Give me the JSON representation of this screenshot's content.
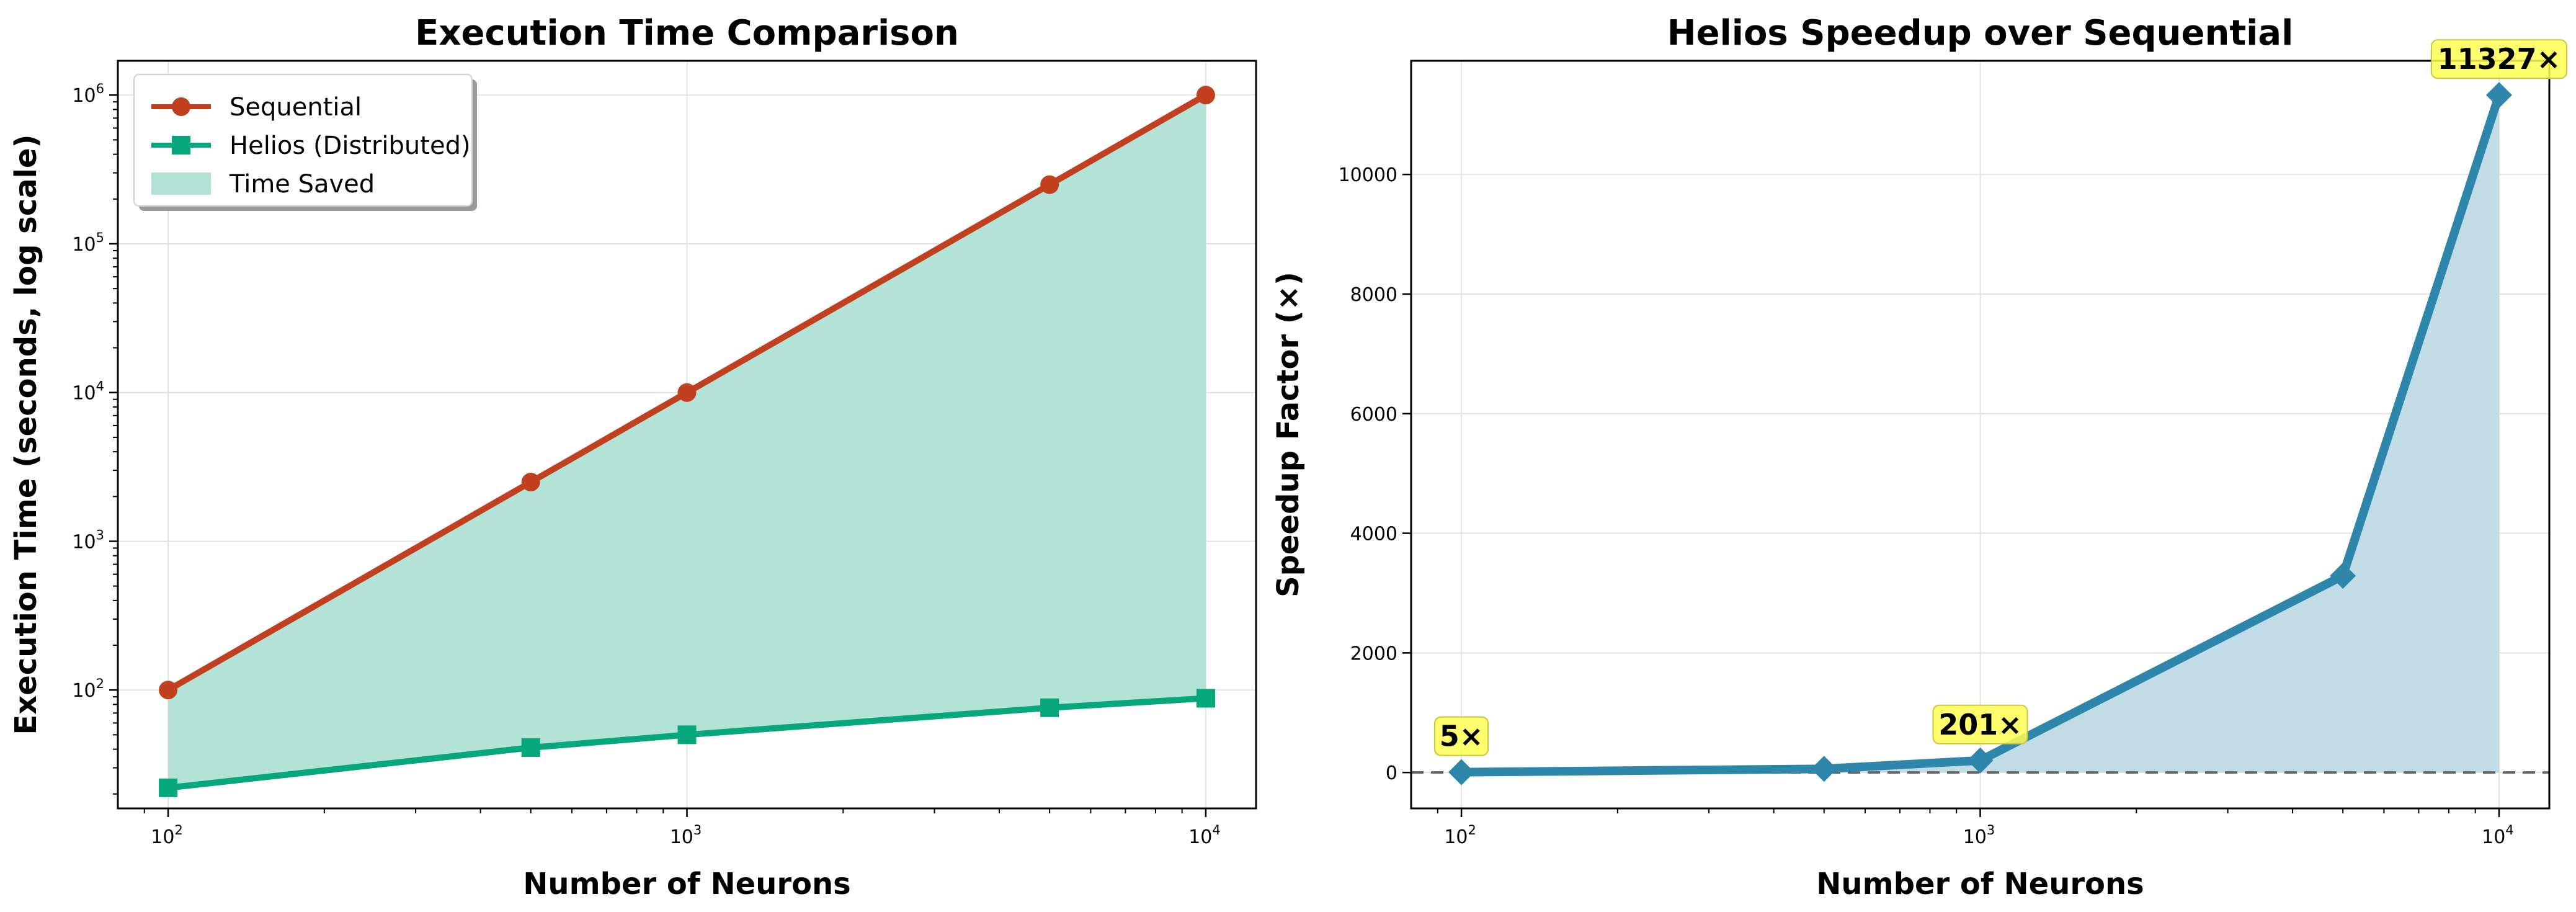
{
  "chart_data": [
    {
      "type": "line",
      "title": "Execution Time Comparison",
      "xlabel": "Number of Neurons",
      "ylabel": "Execution Time (seconds, log scale)",
      "xscale": "log",
      "yscale": "log",
      "xlim": [
        80,
        12500
      ],
      "ylim": [
        16,
        1700000
      ],
      "grid": true,
      "legend_position": "top-left",
      "x": [
        100,
        500,
        1000,
        5000,
        10000
      ],
      "series": [
        {
          "name": "Sequential",
          "marker": "circle",
          "color": "#c0401f",
          "values": [
            100,
            2500,
            10000,
            250000,
            1000000
          ]
        },
        {
          "name": "Helios (Distributed)",
          "marker": "square",
          "color": "#06a77d",
          "values": [
            22,
            41,
            50,
            76,
            88
          ]
        }
      ],
      "fill": {
        "name": "Time Saved",
        "color": "#b3e3d6"
      },
      "xticks": [
        {
          "value": 100,
          "base": "10",
          "exp": "2"
        },
        {
          "value": 1000,
          "base": "10",
          "exp": "3"
        },
        {
          "value": 10000,
          "base": "10",
          "exp": "4"
        }
      ],
      "yticks": [
        {
          "value": 100,
          "base": "10",
          "exp": "2"
        },
        {
          "value": 1000,
          "base": "10",
          "exp": "3"
        },
        {
          "value": 10000,
          "base": "10",
          "exp": "4"
        },
        {
          "value": 100000,
          "base": "10",
          "exp": "5"
        },
        {
          "value": 1000000,
          "base": "10",
          "exp": "6"
        }
      ]
    },
    {
      "type": "line",
      "title": "Helios Speedup over Sequential",
      "xlabel": "Number of Neurons",
      "ylabel": "Speedup Factor (×)",
      "xscale": "log",
      "yscale": "linear",
      "xlim": [
        80,
        12500
      ],
      "ylim": [
        -600,
        11900
      ],
      "grid": true,
      "x": [
        100,
        500,
        1000,
        5000,
        10000
      ],
      "series": [
        {
          "name": "Speedup",
          "marker": "diamond",
          "color": "#2e86ab",
          "values": [
            5,
            61,
            201,
            3289,
            11327
          ]
        }
      ],
      "fill": {
        "color": "#c2dce7"
      },
      "reference_line": {
        "value": 0,
        "style": "dashed",
        "color": "#666666"
      },
      "annotations": [
        {
          "x": 100,
          "y": 5,
          "text": "5×"
        },
        {
          "x": 1000,
          "y": 201,
          "text": "201×"
        },
        {
          "x": 10000,
          "y": 11327,
          "text": "11327×"
        }
      ],
      "xticks": [
        {
          "value": 100,
          "base": "10",
          "exp": "2"
        },
        {
          "value": 1000,
          "base": "10",
          "exp": "3"
        },
        {
          "value": 10000,
          "base": "10",
          "exp": "4"
        }
      ],
      "yticks": [
        {
          "value": 0,
          "label": "0"
        },
        {
          "value": 2000,
          "label": "2000"
        },
        {
          "value": 4000,
          "label": "4000"
        },
        {
          "value": 6000,
          "label": "6000"
        },
        {
          "value": 8000,
          "label": "8000"
        },
        {
          "value": 10000,
          "label": "10000"
        }
      ]
    }
  ]
}
